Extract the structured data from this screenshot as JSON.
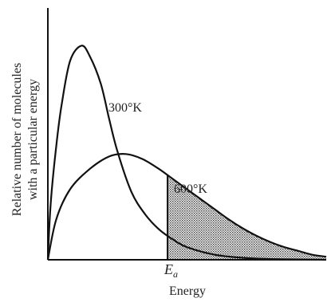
{
  "chart_data": {
    "type": "line",
    "xlabel": "Energy",
    "ylabel_line1": "Relative number of molecules",
    "ylabel_line2": "with a particular energy",
    "threshold_label": "E",
    "threshold_subscript": "a",
    "xlim": [
      0,
      10
    ],
    "ylim": [
      0,
      10
    ],
    "threshold_x": 4.3,
    "shaded_region": "area under 600°K curve for Energy ≥ Ea",
    "series": [
      {
        "name": "300°K",
        "label_position": "right-of-peak",
        "x": [
          0,
          0.1,
          0.3,
          0.5,
          0.8,
          1.2,
          1.5,
          1.9,
          2.2,
          2.5,
          3.0,
          3.5,
          4.0,
          4.5,
          5.0,
          6.0,
          7.0,
          8.0,
          10.0
        ],
        "y": [
          0,
          2.2,
          4.5,
          6.2,
          7.9,
          8.5,
          8.1,
          7.0,
          5.6,
          4.3,
          2.7,
          1.8,
          1.2,
          0.8,
          0.5,
          0.2,
          0.08,
          0.03,
          0.0
        ]
      },
      {
        "name": "600°K",
        "label_position": "upper-right",
        "x": [
          0,
          0.3,
          0.8,
          1.5,
          2.2,
          2.8,
          3.4,
          4.0,
          4.5,
          5.0,
          5.5,
          6.0,
          6.5,
          7.0,
          7.5,
          8.0,
          8.5,
          9.0,
          9.5,
          10.0
        ],
        "y": [
          0,
          1.6,
          2.8,
          3.6,
          4.1,
          4.2,
          4.0,
          3.6,
          3.2,
          2.8,
          2.4,
          2.0,
          1.6,
          1.25,
          0.95,
          0.7,
          0.5,
          0.35,
          0.2,
          0.12
        ]
      }
    ],
    "legend": "none",
    "grid": false
  }
}
